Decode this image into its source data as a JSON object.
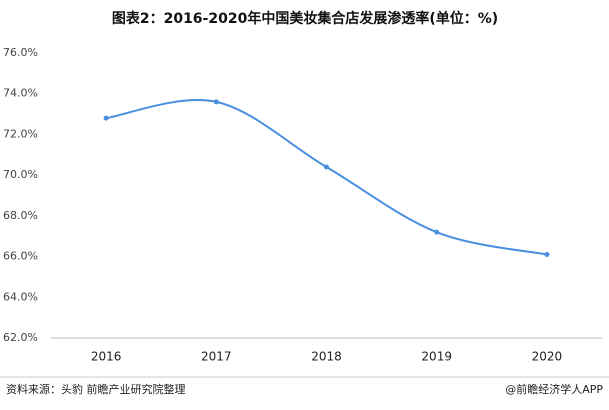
{
  "chart_data": {
    "type": "line",
    "title": "图表2：2016-2020年中国美妆集合店发展渗透率(单位：%)",
    "categories": [
      "2016",
      "2017",
      "2018",
      "2019",
      "2020"
    ],
    "values": [
      72.8,
      73.6,
      70.4,
      67.2,
      66.1
    ],
    "color": "#4a8fdf",
    "smooth": true,
    "ylim": [
      62,
      76
    ],
    "yticks": [
      {
        "value": 62,
        "label": "62.0%"
      },
      {
        "value": 64,
        "label": "64.0%"
      },
      {
        "value": 66,
        "label": "66.0%"
      },
      {
        "value": 68,
        "label": "68.0%"
      },
      {
        "value": 70,
        "label": "70.0%"
      },
      {
        "value": 72,
        "label": "72.0%"
      },
      {
        "value": 74,
        "label": "74.0%"
      },
      {
        "value": 76,
        "label": "76.0%"
      }
    ],
    "grid": false
  },
  "footer": {
    "source": "资料来源：头豹 前瞻产业研究院整理",
    "brand": "@前瞻经济学人APP"
  }
}
